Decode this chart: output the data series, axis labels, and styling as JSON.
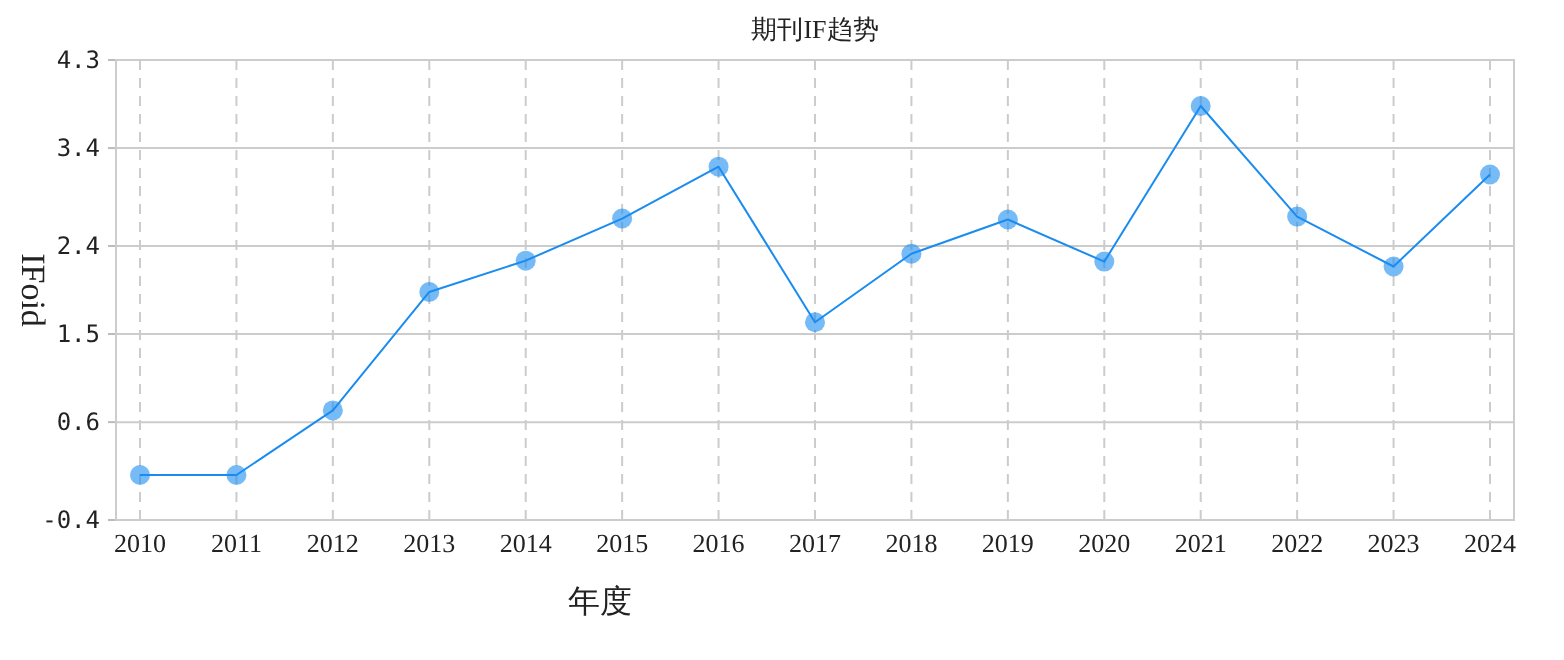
{
  "chart_data": {
    "type": "line",
    "title": "期刊IF趋势",
    "xlabel": "年度",
    "ylabel": "IFoid",
    "categories": [
      "2010",
      "2011",
      "2012",
      "2013",
      "2014",
      "2015",
      "2016",
      "2017",
      "2018",
      "2019",
      "2020",
      "2021",
      "2022",
      "2023",
      "2024"
    ],
    "series": [
      {
        "color": "#1a8cf0",
        "values": [
          0.06,
          0.06,
          0.72,
          1.93,
          2.25,
          2.68,
          3.21,
          1.62,
          2.32,
          2.67,
          2.24,
          3.83,
          2.7,
          2.19,
          3.13
        ]
      }
    ],
    "ylim": [
      -0.4,
      4.3
    ],
    "yticks": [
      {
        "value": -0.4,
        "label": "-0.4"
      },
      0.6,
      1.5,
      2.4,
      3.4,
      4.3
    ],
    "grid": true,
    "marker": "circle",
    "line_style": "solid"
  }
}
